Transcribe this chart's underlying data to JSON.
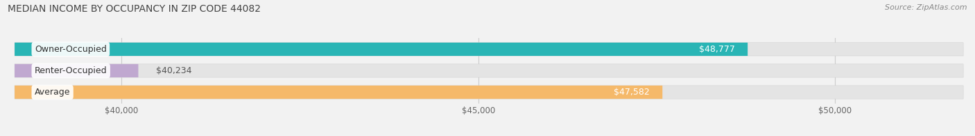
{
  "title": "MEDIAN INCOME BY OCCUPANCY IN ZIP CODE 44082",
  "source": "Source: ZipAtlas.com",
  "categories": [
    "Owner-Occupied",
    "Renter-Occupied",
    "Average"
  ],
  "values": [
    48777,
    40234,
    47582
  ],
  "bar_colors": [
    "#29b5b5",
    "#c0a8d0",
    "#f5b96a"
  ],
  "bar_labels": [
    "$48,777",
    "$40,234",
    "$47,582"
  ],
  "x_min": 38500,
  "x_max": 51800,
  "x_ticks": [
    40000,
    45000,
    50000
  ],
  "x_tick_labels": [
    "$40,000",
    "$45,000",
    "$50,000"
  ],
  "background_color": "#f2f2f2",
  "bar_bg_color": "#e4e4e4",
  "title_fontsize": 10,
  "source_fontsize": 8,
  "label_fontsize": 9,
  "value_fontsize": 9,
  "tick_fontsize": 8.5,
  "bar_height": 0.62,
  "value_label_color_dark": "#555555",
  "value_label_color_light": "white",
  "label_bg_color": "white",
  "grid_color": "#cccccc"
}
